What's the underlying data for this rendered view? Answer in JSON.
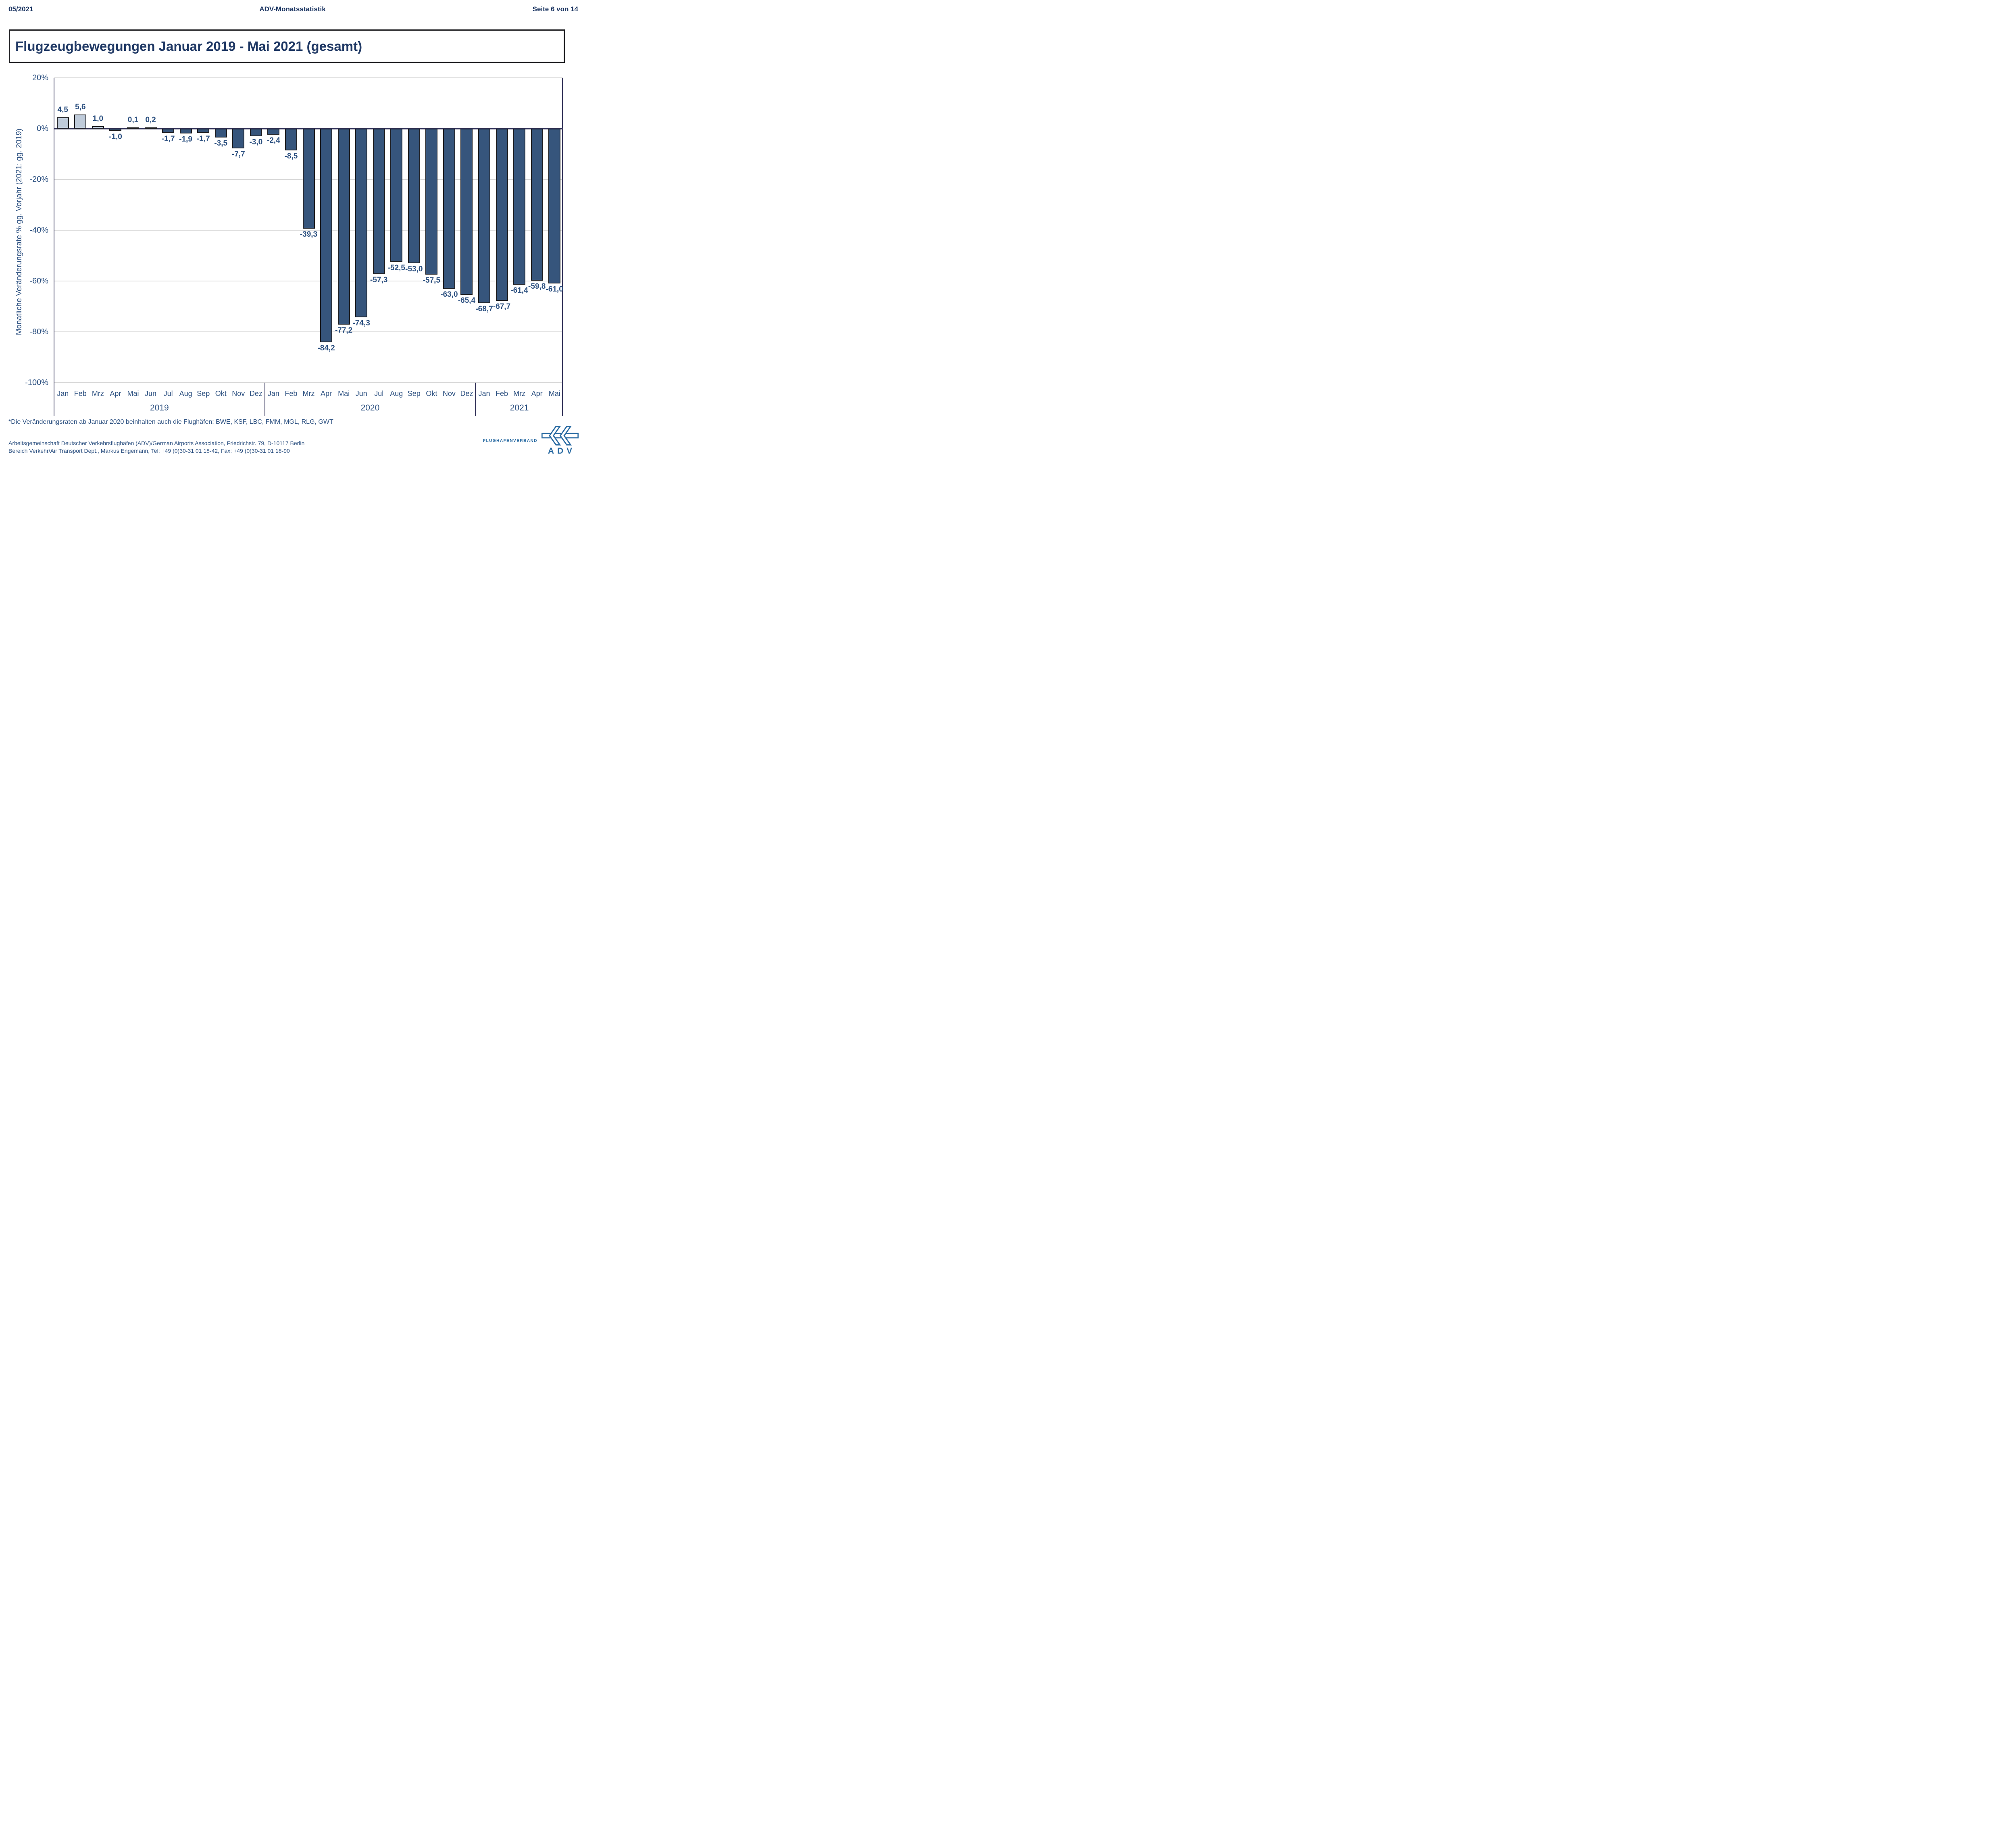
{
  "header": {
    "date": "05/2021",
    "center": "ADV-Monatsstatistik",
    "page": "Seite 6 von 14"
  },
  "title": {
    "text": "Flugzeugbewegungen Januar 2019 - Mai 2021 (gesamt)"
  },
  "chart_data": {
    "type": "bar",
    "title": "Flugzeugbewegungen Januar 2019 - Mai 2021 (gesamt)",
    "ylabel": "Monatliche Veränderungsrate % gg. Vorjahr (2021: gg. 2019)",
    "ylim": [
      -100,
      20
    ],
    "ytick_labels": [
      "20%",
      "0%",
      "-20%",
      "-40%",
      "-60%",
      "-80%",
      "-100%"
    ],
    "grid": "horizontal light gray lines every 20%",
    "legend": "none",
    "categories": [
      "Jan",
      "Feb",
      "Mrz",
      "Apr",
      "Mai",
      "Jun",
      "Jul",
      "Aug",
      "Sep",
      "Okt",
      "Nov",
      "Dez",
      "Jan",
      "Feb",
      "Mrz",
      "Apr",
      "Mai",
      "Jun",
      "Jul",
      "Aug",
      "Sep",
      "Okt",
      "Nov",
      "Dez",
      "Jan",
      "Feb",
      "Mrz",
      "Apr",
      "Mai"
    ],
    "year_groups": [
      {
        "label": "2019",
        "months": 12
      },
      {
        "label": "2020",
        "months": 12
      },
      {
        "label": "2021",
        "months": 5
      }
    ],
    "values": [
      4.5,
      5.6,
      1.0,
      -1.0,
      0.1,
      0.2,
      -1.7,
      -1.9,
      -1.7,
      -3.5,
      -7.7,
      -3.0,
      -2.4,
      -8.5,
      -39.3,
      -84.2,
      -77.2,
      -74.3,
      -57.3,
      -52.5,
      -53.0,
      -57.5,
      -63.0,
      -65.4,
      -68.7,
      -67.7,
      -61.4,
      -59.8,
      -61.0
    ],
    "value_labels": [
      "4,5",
      "5,6",
      "1,0",
      "-1,0",
      "0,1",
      "0,2",
      "-1,7",
      "-1,9",
      "-1,7",
      "-3,5",
      "-7,7",
      "-3,0",
      "-2,4",
      "-8,5",
      "-39,3",
      "-84,2",
      "-77,2",
      "-74,3",
      "-57,3",
      "-52,5",
      "-53,0",
      "-57,5",
      "-63,0",
      "-65,4",
      "-68,7",
      "-67,7",
      "-61,4",
      "-59,8",
      "-61,0"
    ],
    "bar_colors": {
      "positive": "#bfcbda",
      "negative": "#36557c",
      "border": "#1d1d20"
    }
  },
  "footnote": {
    "text": "*Die Veränderungsraten ab Januar 2020 beinhalten auch die Flughäfen: BWE, KSF, LBC, FMM, MGL, RLG, GWT"
  },
  "footer": {
    "line1": "Arbeitsgemeinschaft Deutscher Verkehrsflughäfen (ADV)/German Airports Association, Friedrichstr. 79, D-10117 Berlin",
    "line2": "Bereich Verkehr/Air Transport Dept., Markus Engemann, Tel: +49 (0)30-31 01 18-42, Fax: +49 (0)30-31 01 18-90"
  },
  "logo": {
    "verband": "FLUGHAFENVERBAND",
    "brand": "ADV"
  },
  "colors": {
    "text_navy": "#2d5181",
    "header_navy": "#1f3864",
    "logo_blue": "#2b6ca3",
    "gridline": "#d9d9d9",
    "axis": "#3a3a5f"
  }
}
